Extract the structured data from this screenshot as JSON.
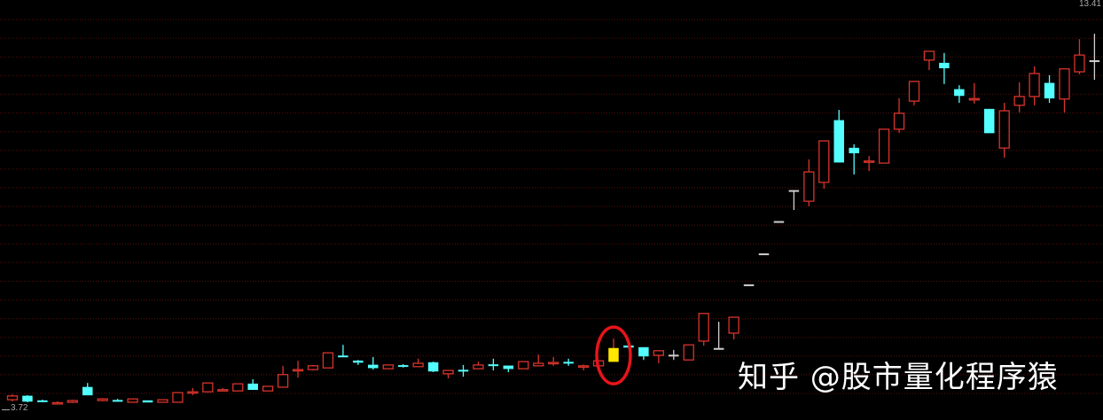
{
  "chart_data": {
    "type": "candlestick",
    "title": "",
    "xlabel": "",
    "ylabel": "",
    "ylim": [
      3.72,
      13.41
    ],
    "price_labels": {
      "max": "13.41",
      "min": "3.72"
    },
    "grid": true,
    "colors": {
      "up": "#d8342c",
      "down": "#54ffff",
      "flat": "#d0d0d0",
      "highlight": "#ffe600",
      "grid": "#5c0c0c",
      "marker_circle": "#e8141a"
    },
    "highlight_marker": {
      "type": "circle",
      "candle_index": 40
    },
    "candles": [
      {
        "t": "up",
        "o": 3.95,
        "c": 4.04,
        "h": 4.08,
        "l": 3.91
      },
      {
        "t": "down",
        "o": 4.04,
        "c": 3.91,
        "h": 4.06,
        "l": 3.89
      },
      {
        "t": "down",
        "o": 3.93,
        "c": 3.91,
        "h": 3.95,
        "l": 3.89
      },
      {
        "t": "up",
        "o": 3.87,
        "c": 3.88,
        "h": 3.91,
        "l": 3.84
      },
      {
        "t": "up",
        "o": 3.89,
        "c": 3.93,
        "h": 3.95,
        "l": 3.87
      },
      {
        "t": "down",
        "o": 4.25,
        "c": 4.06,
        "h": 4.35,
        "l": 4.06
      },
      {
        "t": "up",
        "o": 3.93,
        "c": 3.97,
        "h": 3.99,
        "l": 3.91
      },
      {
        "t": "down",
        "o": 3.94,
        "c": 3.93,
        "h": 3.97,
        "l": 3.91
      },
      {
        "t": "up",
        "o": 3.89,
        "c": 3.97,
        "h": 3.97,
        "l": 3.89
      },
      {
        "t": "down",
        "o": 3.93,
        "c": 3.89,
        "h": 3.93,
        "l": 3.89
      },
      {
        "t": "up",
        "o": 3.89,
        "c": 3.95,
        "h": 3.95,
        "l": 3.89
      },
      {
        "t": "up",
        "o": 3.89,
        "c": 4.12,
        "h": 4.12,
        "l": 3.89
      },
      {
        "t": "up",
        "o": 4.13,
        "c": 4.14,
        "h": 4.23,
        "l": 4.06
      },
      {
        "t": "up",
        "o": 4.14,
        "c": 4.35,
        "h": 4.35,
        "l": 4.12
      },
      {
        "t": "up",
        "o": 4.18,
        "c": 4.19,
        "h": 4.23,
        "l": 4.16
      },
      {
        "t": "up",
        "o": 4.16,
        "c": 4.33,
        "h": 4.33,
        "l": 4.16
      },
      {
        "t": "down",
        "o": 4.33,
        "c": 4.19,
        "h": 4.44,
        "l": 4.19
      },
      {
        "t": "up",
        "o": 4.16,
        "c": 4.27,
        "h": 4.27,
        "l": 4.16
      },
      {
        "t": "up",
        "o": 4.25,
        "c": 4.55,
        "h": 4.76,
        "l": 4.25
      },
      {
        "t": "up",
        "o": 4.66,
        "c": 4.67,
        "h": 4.88,
        "l": 4.48
      },
      {
        "t": "up",
        "o": 4.67,
        "c": 4.76,
        "h": 4.78,
        "l": 4.65
      },
      {
        "t": "up",
        "o": 4.71,
        "c": 5.07,
        "h": 5.07,
        "l": 4.71
      },
      {
        "t": "down",
        "o": 5.0,
        "c": 4.99,
        "h": 5.26,
        "l": 4.97
      },
      {
        "t": "down",
        "o": 4.88,
        "c": 4.84,
        "h": 4.9,
        "l": 4.78
      },
      {
        "t": "down",
        "o": 4.78,
        "c": 4.71,
        "h": 4.97,
        "l": 4.67
      },
      {
        "t": "up",
        "o": 4.69,
        "c": 4.78,
        "h": 4.78,
        "l": 4.69
      },
      {
        "t": "down",
        "o": 4.77,
        "c": 4.76,
        "h": 4.8,
        "l": 4.72
      },
      {
        "t": "up",
        "o": 4.74,
        "c": 4.82,
        "h": 4.93,
        "l": 4.74
      },
      {
        "t": "down",
        "o": 4.84,
        "c": 4.63,
        "h": 4.86,
        "l": 4.61
      },
      {
        "t": "up",
        "o": 4.57,
        "c": 4.65,
        "h": 4.65,
        "l": 4.46
      },
      {
        "t": "down",
        "o": 4.66,
        "c": 4.65,
        "h": 4.78,
        "l": 4.5
      },
      {
        "t": "up",
        "o": 4.69,
        "c": 4.78,
        "h": 4.86,
        "l": 4.69
      },
      {
        "t": "down",
        "o": 4.79,
        "c": 4.78,
        "h": 4.93,
        "l": 4.65
      },
      {
        "t": "down",
        "o": 4.76,
        "c": 4.69,
        "h": 4.76,
        "l": 4.61
      },
      {
        "t": "up",
        "o": 4.69,
        "c": 4.86,
        "h": 4.86,
        "l": 4.69
      },
      {
        "t": "up",
        "o": 4.76,
        "c": 4.82,
        "h": 5.03,
        "l": 4.76
      },
      {
        "t": "up",
        "o": 4.83,
        "c": 4.84,
        "h": 4.97,
        "l": 4.76
      },
      {
        "t": "down",
        "o": 4.85,
        "c": 4.84,
        "h": 4.93,
        "l": 4.76
      },
      {
        "t": "up",
        "o": 4.75,
        "c": 4.76,
        "h": 4.79,
        "l": 4.65
      },
      {
        "t": "up",
        "o": 4.76,
        "c": 4.88,
        "h": 4.88,
        "l": 4.76
      },
      {
        "t": "highlight",
        "o": 4.86,
        "c": 5.18,
        "h": 5.41,
        "l": 4.86
      },
      {
        "t": "down",
        "o": 5.24,
        "c": 5.2,
        "h": 5.24,
        "l": 5.2
      },
      {
        "t": "down",
        "o": 5.2,
        "c": 4.99,
        "h": 5.2,
        "l": 4.9
      },
      {
        "t": "up",
        "o": 5.01,
        "c": 5.12,
        "h": 5.12,
        "l": 4.82
      },
      {
        "t": "flat",
        "o": 5.01,
        "c": 5.02,
        "h": 5.14,
        "l": 4.9
      },
      {
        "t": "up",
        "o": 4.9,
        "c": 5.26,
        "h": 5.26,
        "l": 4.9
      },
      {
        "t": "up",
        "o": 5.35,
        "c": 6.01,
        "h": 6.01,
        "l": 5.24
      },
      {
        "t": "flat",
        "o": 5.18,
        "c": 5.18,
        "h": 5.81,
        "l": 5.18
      },
      {
        "t": "up",
        "o": 5.54,
        "c": 5.92,
        "h": 5.92,
        "l": 5.39
      },
      {
        "t": "flat",
        "o": 6.7,
        "c": 6.7,
        "h": 6.7,
        "l": 6.7
      },
      {
        "t": "flat",
        "o": 7.44,
        "c": 7.44,
        "h": 7.44,
        "l": 7.44
      },
      {
        "t": "flat",
        "o": 8.21,
        "c": 8.21,
        "h": 8.21,
        "l": 8.21
      },
      {
        "t": "flat",
        "o": 8.95,
        "c": 8.95,
        "h": 8.95,
        "l": 8.48
      },
      {
        "t": "up",
        "o": 8.69,
        "c": 9.39,
        "h": 9.69,
        "l": 8.57
      },
      {
        "t": "up",
        "o": 9.14,
        "c": 10.13,
        "h": 10.13,
        "l": 8.99
      },
      {
        "t": "down",
        "o": 10.62,
        "c": 9.62,
        "h": 10.87,
        "l": 9.62
      },
      {
        "t": "down",
        "o": 9.96,
        "c": 9.84,
        "h": 10.05,
        "l": 9.33
      },
      {
        "t": "up",
        "o": 9.64,
        "c": 9.65,
        "h": 9.77,
        "l": 9.41
      },
      {
        "t": "up",
        "o": 9.6,
        "c": 10.41,
        "h": 10.41,
        "l": 9.6
      },
      {
        "t": "up",
        "o": 10.41,
        "c": 10.79,
        "h": 11.15,
        "l": 10.32
      },
      {
        "t": "up",
        "o": 11.08,
        "c": 11.55,
        "h": 11.55,
        "l": 10.98
      },
      {
        "t": "up",
        "o": 12.06,
        "c": 12.27,
        "h": 12.27,
        "l": 11.82
      },
      {
        "t": "down",
        "o": 11.99,
        "c": 11.87,
        "h": 12.23,
        "l": 11.49
      },
      {
        "t": "down",
        "o": 11.36,
        "c": 11.21,
        "h": 11.46,
        "l": 11.04
      },
      {
        "t": "up",
        "o": 11.13,
        "c": 11.14,
        "h": 11.51,
        "l": 11.02
      },
      {
        "t": "down",
        "o": 10.89,
        "c": 10.32,
        "h": 10.89,
        "l": 10.32
      },
      {
        "t": "up",
        "o": 9.96,
        "c": 10.85,
        "h": 11.04,
        "l": 9.73
      },
      {
        "t": "up",
        "o": 10.98,
        "c": 11.19,
        "h": 11.53,
        "l": 10.81
      },
      {
        "t": "up",
        "o": 11.19,
        "c": 11.74,
        "h": 11.91,
        "l": 10.98
      },
      {
        "t": "down",
        "o": 11.51,
        "c": 11.15,
        "h": 11.7,
        "l": 11.04
      },
      {
        "t": "up",
        "o": 11.13,
        "c": 11.85,
        "h": 11.85,
        "l": 10.81
      },
      {
        "t": "up",
        "o": 11.78,
        "c": 12.18,
        "h": 12.56,
        "l": 11.72
      },
      {
        "t": "flat",
        "o": 12.04,
        "c": 12.05,
        "h": 12.69,
        "l": 11.59
      },
      {
        "t": "highlight",
        "o": 12.16,
        "c": 12.76,
        "h": 13.41,
        "l": 12.16
      }
    ]
  },
  "watermark": "知乎 @股市量化程序猿"
}
